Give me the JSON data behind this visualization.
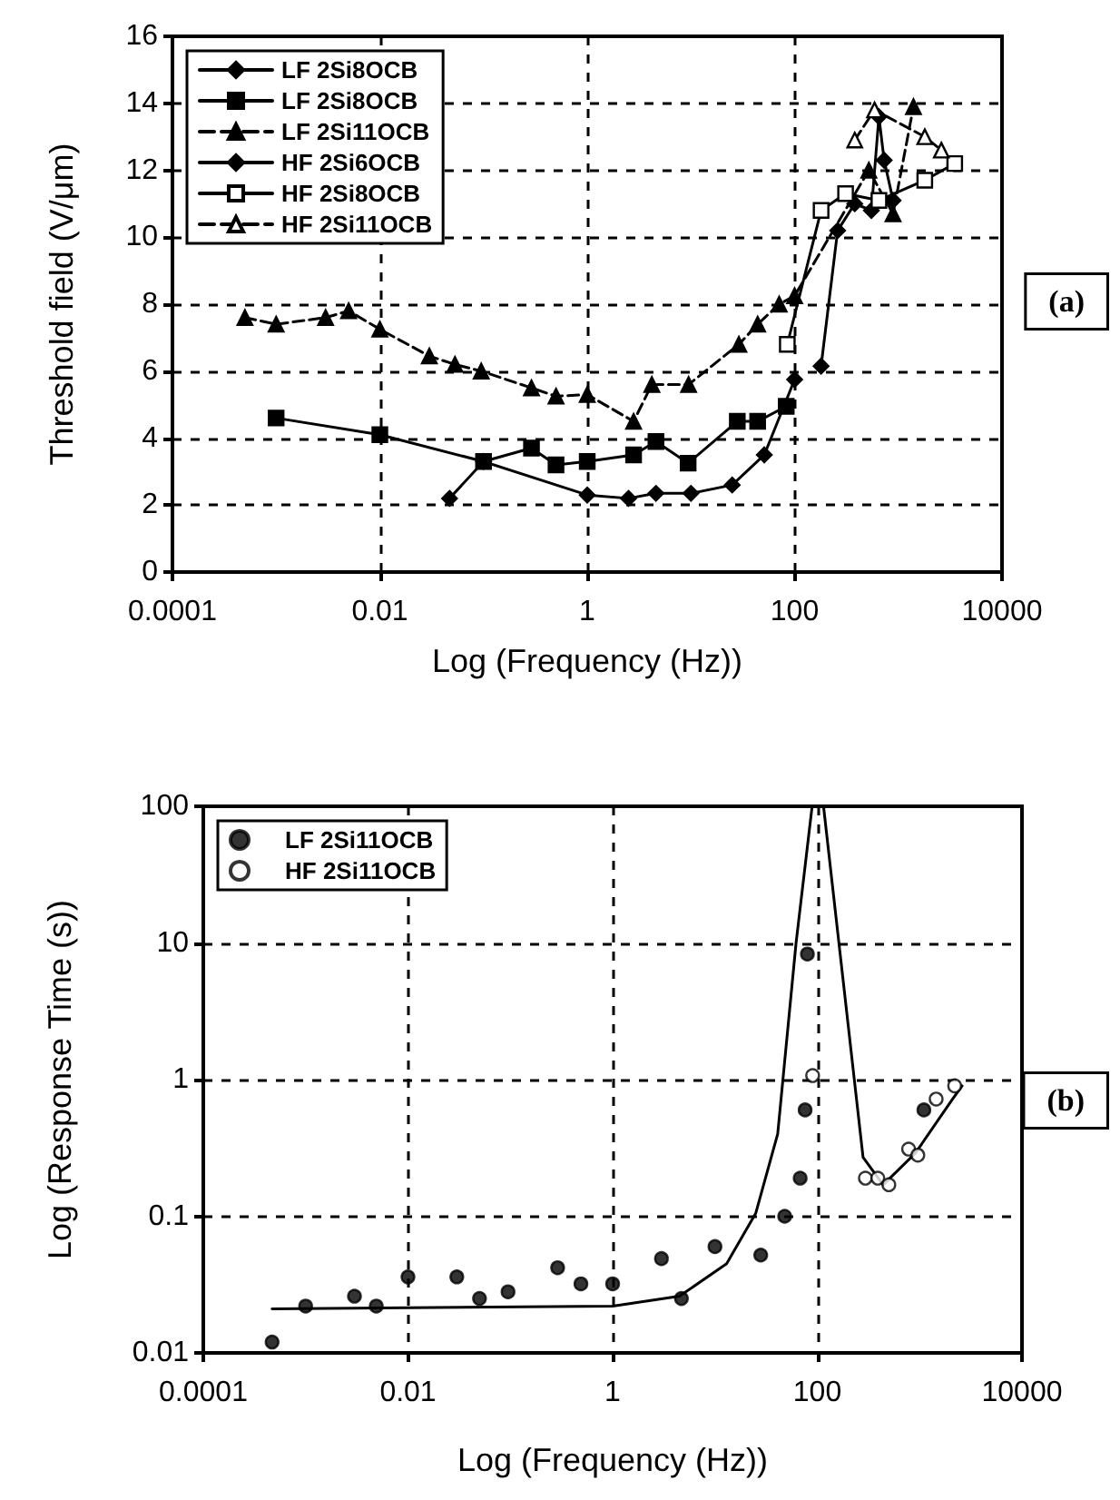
{
  "chart_data": [
    {
      "type": "line",
      "xlabel": "Log (Frequency (Hz))",
      "ylabel": "Threshold field (V/μm)",
      "log": "x",
      "xlim": [
        0.0001,
        10000
      ],
      "xticks": [
        0.0001,
        0.01,
        1,
        100,
        10000
      ],
      "ylim": [
        0,
        16
      ],
      "yticks": [
        0,
        2,
        4,
        6,
        8,
        10,
        12,
        14,
        16
      ],
      "grid": true,
      "legend": "top left",
      "annotations": [
        "(a)"
      ],
      "series": [
        {
          "name": "LF 2Si8OCB",
          "color": "#000000",
          "marker": "diamond",
          "line_style": "solid",
          "x": [
            0.047,
            0.1,
            1,
            2.5,
            4.6,
            10,
            25,
            51,
            100
          ],
          "values": [
            2.2,
            3.3,
            2.3,
            2.2,
            2.35,
            2.35,
            2.6,
            3.5,
            5.75
          ]
        },
        {
          "name": "LF 2Si8OCB",
          "color": "#000000",
          "marker": "square",
          "line_style": "solid",
          "x": [
            0.001,
            0.01,
            0.1,
            0.29,
            0.5,
            1,
            2.8,
            4.6,
            9.4,
            28,
            44,
            83
          ],
          "values": [
            4.6,
            4.1,
            3.3,
            3.7,
            3.2,
            3.3,
            3.5,
            3.9,
            3.25,
            4.5,
            4.5,
            4.95
          ]
        },
        {
          "name": "LF 2Si11OCB",
          "color": "#000000",
          "marker": "triangle",
          "line_style": "dashed",
          "x": [
            0.0005,
            0.001,
            0.003,
            0.005,
            0.01,
            0.03,
            0.053,
            0.095,
            0.29,
            0.5,
            1,
            2.8,
            4.2,
            9.5,
            29,
            44,
            71,
            100,
            520,
            890,
            1400
          ],
          "values": [
            7.6,
            7.4,
            7.6,
            7.8,
            7.25,
            6.45,
            6.2,
            6.0,
            5.5,
            5.25,
            5.3,
            4.5,
            5.6,
            5.6,
            6.8,
            7.4,
            8.0,
            8.25,
            12.0,
            10.7,
            13.9
          ]
        },
        {
          "name": "HF 2Si6OCB",
          "color": "#000000",
          "marker": "diamond",
          "line_style": "solid",
          "x": [
            180,
            260,
            380,
            550,
            650,
            730,
            890
          ],
          "values": [
            6.15,
            10.2,
            11.0,
            10.8,
            13.6,
            12.3,
            11.1
          ]
        },
        {
          "name": "HF 2Si8OCB",
          "color": "#ffffff",
          "marker": "square",
          "line_style": "solid",
          "x": [
            85,
            180,
            310,
            650,
            1800,
            3500
          ],
          "values": [
            6.8,
            10.8,
            11.3,
            11.1,
            11.7,
            12.2
          ]
        },
        {
          "name": "HF 2Si11OCB",
          "color": "#ffffff",
          "marker": "triangle",
          "line_style": "dashed",
          "x": [
            380,
            590,
            1800,
            2600
          ],
          "values": [
            12.9,
            13.8,
            13.0,
            12.6
          ]
        }
      ]
    },
    {
      "type": "scatter",
      "xlabel": "Log (Frequency (Hz))",
      "ylabel": "Log (Response Time (s))",
      "log": "xy",
      "xlim": [
        0.0001,
        10000
      ],
      "xticks": [
        0.0001,
        0.01,
        1,
        100,
        10000
      ],
      "ylim": [
        0.01,
        100
      ],
      "yticks": [
        0.01,
        0.1,
        1,
        10,
        100
      ],
      "grid": true,
      "legend": "top left",
      "annotations": [
        "(b)"
      ],
      "series": [
        {
          "name": "LF 2Si11OCB",
          "color": "#000000",
          "marker": "circle",
          "x": [
            0.00047,
            0.001,
            0.003,
            0.0049,
            0.01,
            0.03,
            0.05,
            0.095,
            0.29,
            0.49,
            1,
            3,
            4.7,
            10,
            28,
            48,
            68,
            76,
            80,
            1100
          ],
          "values": [
            0.012,
            0.022,
            0.026,
            0.022,
            0.036,
            0.036,
            0.025,
            0.028,
            0.042,
            0.032,
            0.032,
            0.049,
            0.025,
            0.06,
            0.052,
            0.1,
            0.19,
            0.6,
            8.3,
            0.6
          ]
        },
        {
          "name": "HF 2Si11OCB",
          "color": "#ffffff",
          "marker": "circle",
          "x": [
            90,
            295,
            390,
            500,
            780,
            960,
            1450,
            2200
          ],
          "values": [
            1.07,
            0.19,
            0.19,
            0.17,
            0.31,
            0.28,
            0.72,
            0.9
          ]
        },
        {
          "type": "line",
          "color": "#000000",
          "marker": "none",
          "line_style": "solid",
          "x": [
            0.00047,
            1,
            4.5,
            13,
            25,
            41,
            62,
            89,
            115,
            280,
            440,
            910,
            2100,
            2600
          ],
          "values": [
            0.021,
            0.022,
            0.026,
            0.045,
            0.105,
            0.4,
            10,
            100,
            100,
            0.27,
            0.17,
            0.29,
            0.72,
            0.9
          ]
        }
      ]
    }
  ]
}
